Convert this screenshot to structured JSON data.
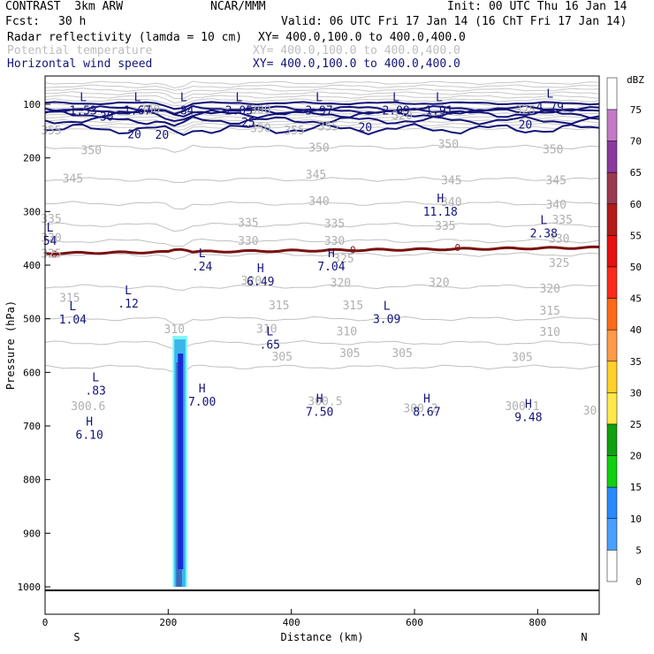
{
  "header": {
    "model": "CONTRAST  3km ARW",
    "center": "NCAR/MMM",
    "init": "Init: 00 UTC Thu 16 Jan 14",
    "fcst_label": "Fcst:",
    "fcst_value": "30 h",
    "valid": "Valid: 06 UTC Fri 17 Jan 14 (16 ChT Fri 17 Jan 14)",
    "fields": [
      {
        "name": "Radar reflectivity (lamda = 10 cm)",
        "xy": "XY= 400.0,100.0 to 400.0,400.0",
        "color": "#000000"
      },
      {
        "name": "Potential temperature",
        "xy": "XY= 400.0,100.0 to 400.0,400.0",
        "color": "#bdbdbd"
      },
      {
        "name": "Horizontal wind speed",
        "xy": "XY= 400.0,100.0 to 400.0,400.0",
        "color": "#13137a"
      }
    ]
  },
  "chart_data": {
    "type": "cross-section",
    "xlabel": "Distance (km)",
    "ylabel": "Pressure (hPa)",
    "xlim": [
      0,
      900
    ],
    "ylim": [
      1050,
      50
    ],
    "x_ticks": [
      "0",
      "200",
      "400",
      "600",
      "800"
    ],
    "y_ticks": [
      "100",
      "200",
      "300",
      "400",
      "500",
      "600",
      "700",
      "800",
      "900",
      "1000"
    ],
    "endpoints": {
      "left": "S",
      "right": "N"
    },
    "theta_contours": [
      {
        "label": "350",
        "p": 180
      },
      {
        "label": "345",
        "p": 240
      },
      {
        "label": "340",
        "p": 285
      },
      {
        "label": "335",
        "p": 325
      },
      {
        "label": "330",
        "p": 355
      },
      {
        "label": "325",
        "p": 380
      },
      {
        "label": "320",
        "p": 440
      },
      {
        "label": "315",
        "p": 500
      },
      {
        "label": "310",
        "p": 545
      },
      {
        "label": "305",
        "p": 590
      }
    ],
    "theta_labels": [
      {
        "text": "350",
        "x": 75,
        "p": 185
      },
      {
        "text": "350",
        "x": 445,
        "p": 180
      },
      {
        "text": "350",
        "x": 655,
        "p": 173
      },
      {
        "text": "350",
        "x": 825,
        "p": 183
      },
      {
        "text": "345",
        "x": 45,
        "p": 238
      },
      {
        "text": "345",
        "x": 440,
        "p": 230
      },
      {
        "text": "345",
        "x": 660,
        "p": 241
      },
      {
        "text": "345",
        "x": 830,
        "p": 241
      },
      {
        "text": "340",
        "x": 445,
        "p": 280
      },
      {
        "text": "340",
        "x": 660,
        "p": 281
      },
      {
        "text": "340",
        "x": 830,
        "p": 286
      },
      {
        "text": "335",
        "x": 10,
        "p": 313
      },
      {
        "text": "335",
        "x": 330,
        "p": 320
      },
      {
        "text": "335",
        "x": 470,
        "p": 322
      },
      {
        "text": "335",
        "x": 650,
        "p": 326
      },
      {
        "text": "335",
        "x": 840,
        "p": 314
      },
      {
        "text": "330",
        "x": 10,
        "p": 348
      },
      {
        "text": "330",
        "x": 330,
        "p": 354
      },
      {
        "text": "330",
        "x": 470,
        "p": 354
      },
      {
        "text": "330",
        "x": 835,
        "p": 350
      },
      {
        "text": "325",
        "x": 10,
        "p": 378
      },
      {
        "text": "325",
        "x": 485,
        "p": 387
      },
      {
        "text": "325",
        "x": 835,
        "p": 395
      },
      {
        "text": "320",
        "x": 335,
        "p": 428
      },
      {
        "text": "320",
        "x": 480,
        "p": 432
      },
      {
        "text": "320",
        "x": 640,
        "p": 431
      },
      {
        "text": "320",
        "x": 820,
        "p": 443
      },
      {
        "text": "315",
        "x": 40,
        "p": 460
      },
      {
        "text": "315",
        "x": 380,
        "p": 474
      },
      {
        "text": "315",
        "x": 500,
        "p": 474
      },
      {
        "text": "315",
        "x": 820,
        "p": 484
      },
      {
        "text": "310",
        "x": 210,
        "p": 519
      },
      {
        "text": "310",
        "x": 360,
        "p": 518
      },
      {
        "text": "310",
        "x": 490,
        "p": 523
      },
      {
        "text": "310",
        "x": 820,
        "p": 524
      },
      {
        "text": "305",
        "x": 385,
        "p": 570
      },
      {
        "text": "305",
        "x": 495,
        "p": 563
      },
      {
        "text": "305",
        "x": 580,
        "p": 563
      },
      {
        "text": "305",
        "x": 775,
        "p": 571
      },
      {
        "text": "300.5",
        "x": 455,
        "p": 653
      },
      {
        "text": "300.2",
        "x": 610,
        "p": 666
      },
      {
        "text": "300.1",
        "x": 775,
        "p": 662
      },
      {
        "text": "300.6",
        "x": 70,
        "p": 662
      },
      {
        "text": "30",
        "x": 885,
        "p": 670
      },
      {
        "text": "350",
        "x": 350,
        "p": 144
      },
      {
        "text": "355",
        "x": 405,
        "p": 148
      },
      {
        "text": "355",
        "x": 10,
        "p": 148
      },
      {
        "text": "355",
        "x": 460,
        "p": 140
      },
      {
        "text": "300",
        "x": 170,
        "p": 109
      },
      {
        "text": "300",
        "x": 350,
        "p": 109
      },
      {
        "text": "320",
        "x": 580,
        "p": 120
      },
      {
        "text": "325",
        "x": 780,
        "p": 110
      }
    ],
    "wind_contours": [
      {
        "label": "30",
        "p": 118
      },
      {
        "label": "25",
        "p": 130
      },
      {
        "label": "20",
        "p": 147
      }
    ],
    "wind_labels": [
      {
        "text": "30",
        "x": 100,
        "p": 122
      },
      {
        "text": "25",
        "x": 330,
        "p": 133
      },
      {
        "text": "20",
        "x": 145,
        "p": 155
      },
      {
        "text": "20",
        "x": 190,
        "p": 156
      },
      {
        "text": "20",
        "x": 520,
        "p": 142
      },
      {
        "text": "20",
        "x": 780,
        "p": 137
      }
    ],
    "zero_contour_labels": [
      {
        "text": "0",
        "x": 15,
        "p": 379
      },
      {
        "text": "0",
        "x": 500,
        "p": 371
      },
      {
        "text": "0",
        "x": 670,
        "p": 367
      }
    ],
    "extrema": [
      {
        "type": "L",
        "value": "1.53",
        "x": 62,
        "p": 94
      },
      {
        "type": "L",
        "value": "1.67",
        "x": 150,
        "p": 94
      },
      {
        "type": "L",
        "value": ".84",
        "x": 225,
        "p": 94
      },
      {
        "type": "L",
        "value": "2.05",
        "x": 315,
        "p": 94
      },
      {
        "type": "L",
        "value": "3.97",
        "x": 445,
        "p": 94
      },
      {
        "type": "L",
        "value": "2.09",
        "x": 570,
        "p": 94
      },
      {
        "type": "L",
        "value": "1.91",
        "x": 640,
        "p": 94
      },
      {
        "type": "L",
        "value": "4.79",
        "x": 820,
        "p": 88
      },
      {
        "type": "H",
        "value": "11.18",
        "x": 642,
        "p": 283
      },
      {
        "type": "L",
        "value": "2.38",
        "x": 810,
        "p": 323
      },
      {
        "type": "L",
        "value": "54",
        "x": 8,
        "p": 337
      },
      {
        "type": "L",
        "value": ".24",
        "x": 255,
        "p": 385
      },
      {
        "type": "H",
        "value": "7.04",
        "x": 465,
        "p": 385
      },
      {
        "type": "H",
        "value": "6.49",
        "x": 350,
        "p": 413
      },
      {
        "type": "L",
        "value": ".12",
        "x": 135,
        "p": 454
      },
      {
        "type": "L",
        "value": "1.04",
        "x": 45,
        "p": 484
      },
      {
        "type": "L",
        "value": "3.09",
        "x": 555,
        "p": 483
      },
      {
        "type": "L",
        "value": ".65",
        "x": 365,
        "p": 531
      },
      {
        "type": "L",
        "value": ".83",
        "x": 82,
        "p": 617
      },
      {
        "type": "H",
        "value": "7.00",
        "x": 255,
        "p": 637
      },
      {
        "type": "H",
        "value": "7.50",
        "x": 446,
        "p": 656
      },
      {
        "type": "H",
        "value": "8.67",
        "x": 620,
        "p": 656
      },
      {
        "type": "H",
        "value": "9.48",
        "x": 785,
        "p": 666
      },
      {
        "type": "H",
        "value": "6.10",
        "x": 72,
        "p": 699
      }
    ],
    "reflectivity_column": {
      "x_start": 210,
      "x_end": 228,
      "top_p": 532,
      "bottom_p": 1000,
      "max_dbz": 20
    },
    "colorbar": {
      "title": "dBZ",
      "levels": [
        "75",
        "70",
        "65",
        "60",
        "55",
        "50",
        "45",
        "40",
        "35",
        "30",
        "25",
        "20",
        "15",
        "10",
        "5",
        "0"
      ],
      "colors": [
        "#c47ac6",
        "#8a3a9e",
        "#9b3a4e",
        "#b41a1a",
        "#e81010",
        "#ff2a1a",
        "#ff6a1a",
        "#ff9a4a",
        "#ffd02a",
        "#ffe84a",
        "#10a010",
        "#10d010",
        "#2a8aff",
        "#4aa0ff",
        "#ffffff"
      ]
    }
  }
}
